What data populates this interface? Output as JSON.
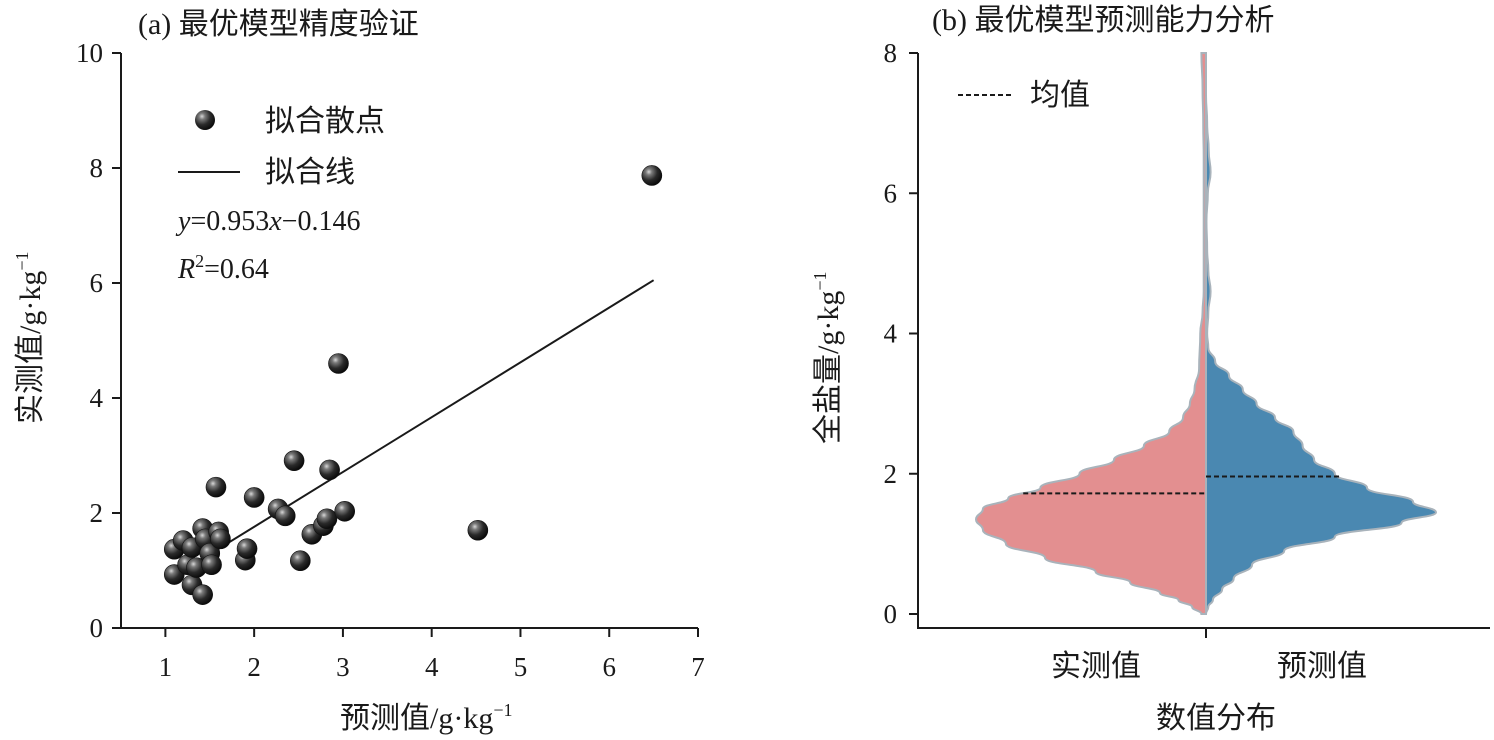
{
  "chart_data": [
    {
      "type": "scatter",
      "title": "(a) 最优模型精度验证",
      "xlabel": "预测值/g·kg",
      "ylabel": "实测值/g·kg",
      "unit_exponent": "−1",
      "xlim": [
        0.5,
        7
      ],
      "ylim": [
        0,
        10
      ],
      "xticks": [
        "1",
        "2",
        "3",
        "4",
        "5",
        "6",
        "7"
      ],
      "yticks": [
        "0",
        "2",
        "4",
        "6",
        "8",
        "10"
      ],
      "legend": {
        "position": "top-left",
        "scatter_label": "拟合散点",
        "line_label": "拟合线"
      },
      "equation": {
        "y": "y",
        "eq_rest": "=0.953",
        "x": "x",
        "eq_tail": "−0.146"
      },
      "r2": {
        "r": "R",
        "sup": "2",
        "rest": "=0.64"
      },
      "fit_line": {
        "slope": 0.953,
        "intercept": -0.146,
        "x_range": [
          1.4,
          6.5
        ]
      },
      "points": [
        {
          "x": 1.1,
          "y": 0.93
        },
        {
          "x": 1.1,
          "y": 1.37
        },
        {
          "x": 1.2,
          "y": 1.52
        },
        {
          "x": 1.25,
          "y": 1.1
        },
        {
          "x": 1.3,
          "y": 1.4
        },
        {
          "x": 1.3,
          "y": 0.75
        },
        {
          "x": 1.35,
          "y": 1.05
        },
        {
          "x": 1.42,
          "y": 0.58
        },
        {
          "x": 1.42,
          "y": 1.73
        },
        {
          "x": 1.45,
          "y": 1.55
        },
        {
          "x": 1.5,
          "y": 1.3
        },
        {
          "x": 1.52,
          "y": 1.1
        },
        {
          "x": 1.57,
          "y": 2.45
        },
        {
          "x": 1.6,
          "y": 1.67
        },
        {
          "x": 1.62,
          "y": 1.55
        },
        {
          "x": 1.9,
          "y": 1.18
        },
        {
          "x": 1.92,
          "y": 1.38
        },
        {
          "x": 2.0,
          "y": 2.27
        },
        {
          "x": 2.27,
          "y": 2.07
        },
        {
          "x": 2.35,
          "y": 1.95
        },
        {
          "x": 2.45,
          "y": 2.91
        },
        {
          "x": 2.52,
          "y": 1.17
        },
        {
          "x": 2.65,
          "y": 1.63
        },
        {
          "x": 2.78,
          "y": 1.78
        },
        {
          "x": 2.82,
          "y": 1.9
        },
        {
          "x": 2.85,
          "y": 2.75
        },
        {
          "x": 2.95,
          "y": 4.6
        },
        {
          "x": 3.02,
          "y": 2.03
        },
        {
          "x": 4.52,
          "y": 1.7
        },
        {
          "x": 6.48,
          "y": 7.87
        }
      ]
    },
    {
      "type": "violin",
      "title": "(b) 最优模型预测能力分析",
      "xlabel": "数值分布",
      "ylabel": "全盐量/g·kg",
      "unit_exponent": "−1",
      "ylim": [
        0,
        8
      ],
      "yticks": [
        "0",
        "2",
        "4",
        "6",
        "8"
      ],
      "categories": [
        "实测值",
        "预测值"
      ],
      "legend": {
        "position": "top-left",
        "label": "均值"
      },
      "colors": {
        "left": "#e38f90",
        "right": "#4a88b1",
        "outline": "#a9b3bb"
      },
      "series": [
        {
          "name": "实测值",
          "side": "left",
          "mean": 1.72,
          "profile": [
            [
              0.0,
              0.02
            ],
            [
              0.1,
              0.06
            ],
            [
              0.2,
              0.12
            ],
            [
              0.3,
              0.2
            ],
            [
              0.45,
              0.33
            ],
            [
              0.6,
              0.48
            ],
            [
              0.8,
              0.7
            ],
            [
              1.0,
              0.87
            ],
            [
              1.2,
              0.97
            ],
            [
              1.35,
              1.0
            ],
            [
              1.5,
              0.97
            ],
            [
              1.65,
              0.86
            ],
            [
              1.8,
              0.72
            ],
            [
              2.0,
              0.55
            ],
            [
              2.2,
              0.4
            ],
            [
              2.4,
              0.27
            ],
            [
              2.6,
              0.16
            ],
            [
              2.8,
              0.1
            ],
            [
              3.0,
              0.07
            ],
            [
              3.2,
              0.05
            ],
            [
              3.5,
              0.03
            ],
            [
              4.0,
              0.025
            ],
            [
              4.3,
              0.015
            ],
            [
              4.6,
              0.01
            ],
            [
              5.0,
              0.01
            ],
            [
              5.5,
              0.01
            ],
            [
              6.0,
              0.01
            ],
            [
              6.5,
              0.01
            ],
            [
              7.0,
              0.012
            ],
            [
              7.5,
              0.015
            ],
            [
              8.0,
              0.02
            ]
          ]
        },
        {
          "name": "预测值",
          "side": "right",
          "mean": 1.96,
          "profile": [
            [
              0.0,
              0.0
            ],
            [
              0.1,
              0.01
            ],
            [
              0.2,
              0.03
            ],
            [
              0.35,
              0.07
            ],
            [
              0.5,
              0.12
            ],
            [
              0.7,
              0.2
            ],
            [
              0.9,
              0.34
            ],
            [
              1.1,
              0.56
            ],
            [
              1.3,
              0.85
            ],
            [
              1.45,
              1.0
            ],
            [
              1.6,
              0.9
            ],
            [
              1.8,
              0.7
            ],
            [
              2.0,
              0.56
            ],
            [
              2.2,
              0.47
            ],
            [
              2.4,
              0.42
            ],
            [
              2.6,
              0.38
            ],
            [
              2.8,
              0.3
            ],
            [
              3.0,
              0.22
            ],
            [
              3.2,
              0.16
            ],
            [
              3.4,
              0.1
            ],
            [
              3.6,
              0.04
            ],
            [
              3.8,
              0.01
            ],
            [
              4.0,
              0.005
            ],
            [
              4.3,
              0.01
            ],
            [
              4.6,
              0.02
            ],
            [
              4.9,
              0.01
            ],
            [
              5.2,
              0.005
            ],
            [
              5.6,
              0.002
            ],
            [
              6.0,
              0.008
            ],
            [
              6.3,
              0.02
            ],
            [
              6.6,
              0.012
            ],
            [
              7.0,
              0.005
            ],
            [
              7.4,
              0.0
            ]
          ]
        }
      ]
    }
  ]
}
